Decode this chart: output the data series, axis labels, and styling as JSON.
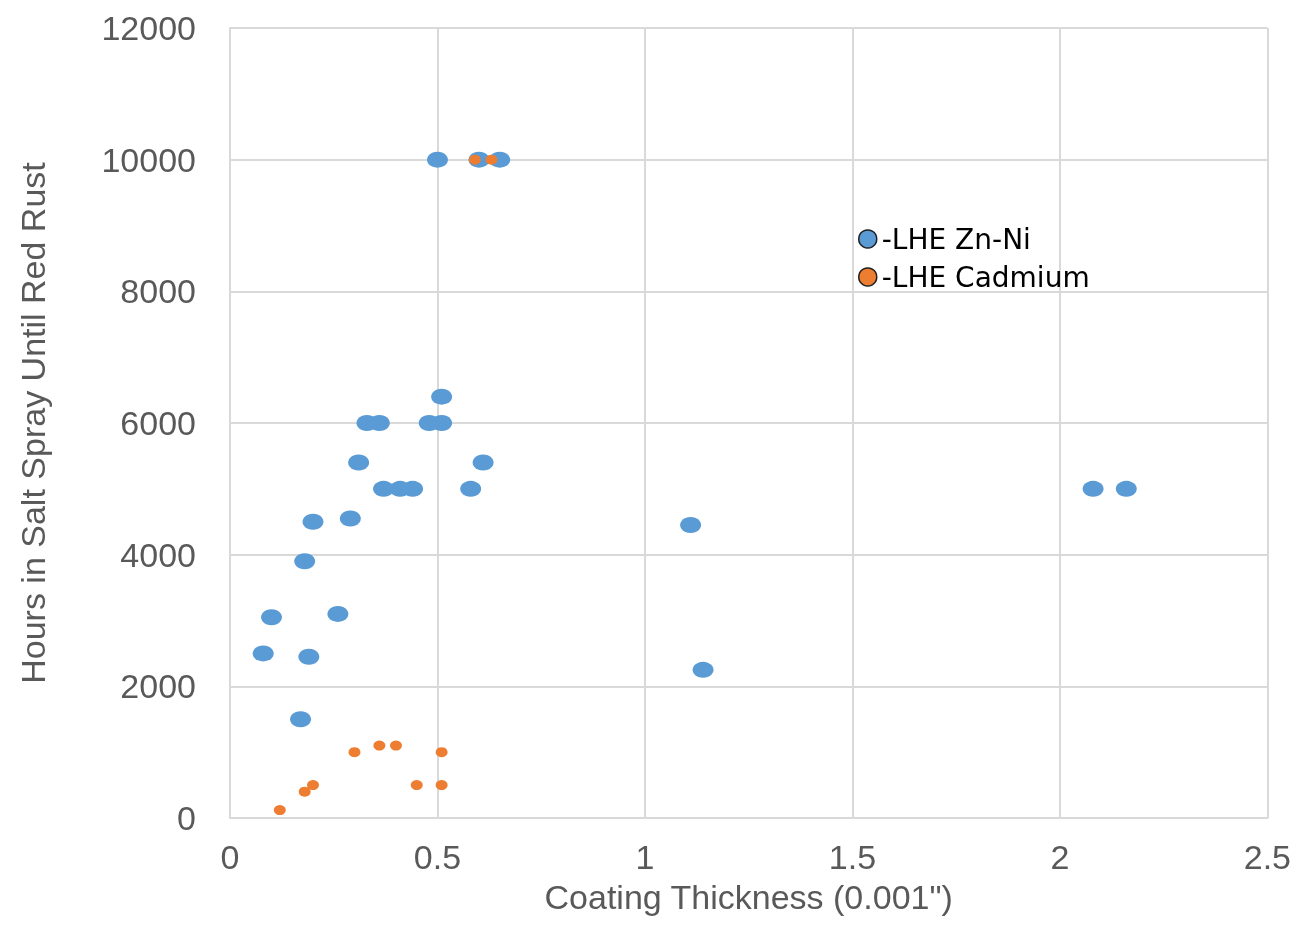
{
  "chart_data": {
    "type": "scatter",
    "xlabel": "Coating Thickness (0.001\")",
    "ylabel": "Hours in Salt Spray Until Red Rust",
    "xlim": [
      0,
      2.5
    ],
    "xticks": [
      0,
      0.5,
      1,
      1.5,
      2,
      2.5
    ],
    "ylim": [
      0,
      12000
    ],
    "yticks": [
      0,
      2000,
      4000,
      6000,
      8000,
      10000,
      12000
    ],
    "grid": true,
    "legend": "top right",
    "marker": "circle",
    "series": [
      {
        "name": "-LHE Zn-Ni",
        "color": "#5b9bd5",
        "x": [
          0.5,
          0.6,
          0.65,
          0.51,
          0.33,
          0.36,
          0.48,
          0.51,
          0.31,
          0.61,
          0.37,
          0.41,
          0.44,
          0.58,
          0.2,
          0.29,
          0.18,
          0.1,
          0.26,
          0.08,
          0.19,
          0.17,
          1.11,
          1.14,
          2.08,
          2.16
        ],
        "values": [
          10000,
          10000,
          10000,
          6400,
          6000,
          6000,
          6000,
          6000,
          5400,
          5400,
          5000,
          5000,
          5000,
          5000,
          4500,
          4550,
          3900,
          3050,
          3100,
          2500,
          2450,
          1500,
          4450,
          2250,
          5000,
          5000
        ]
      },
      {
        "name": "-LHE Cadmium",
        "color": "#ed7d31",
        "x": [
          0.59,
          0.63,
          0.3,
          0.36,
          0.4,
          0.51,
          0.18,
          0.2,
          0.45,
          0.51,
          0.12
        ],
        "values": [
          10000,
          10000,
          1000,
          1100,
          1100,
          1000,
          400,
          500,
          500,
          500,
          120
        ]
      }
    ]
  }
}
